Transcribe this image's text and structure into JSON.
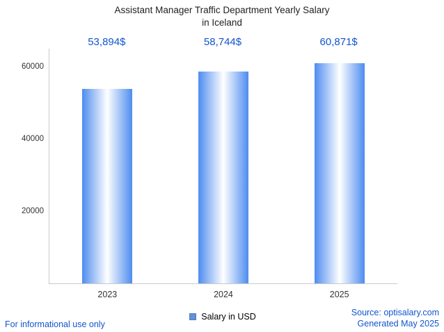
{
  "chart_data": {
    "type": "bar",
    "title": "Assistant Manager Traffic Department Yearly Salary in Iceland",
    "title_lines": [
      "Assistant Manager Traffic Department Yearly Salary",
      "in Iceland"
    ],
    "categories": [
      "2023",
      "2024",
      "2025"
    ],
    "values": [
      53894,
      58744,
      60871
    ],
    "value_labels": [
      "53,894$",
      "58,744$",
      "60,871$"
    ],
    "series": [
      {
        "name": "Salary in USD",
        "values": [
          53894,
          58744,
          60871
        ]
      }
    ],
    "xlabel": "",
    "ylabel": "",
    "ylim": [
      0,
      65000
    ],
    "yticks": [
      20000,
      40000,
      60000
    ],
    "grid": false,
    "legend_position": "bottom"
  },
  "legend": {
    "label": "Salary in USD",
    "swatch_color": "#6691d3"
  },
  "footer": {
    "disclaimer": "For informational use only",
    "source": "Source: optisalary.com",
    "generated": "Generated May 2025"
  },
  "colors": {
    "label_blue": "#1155cc",
    "bar_edge": "#4e8cf0",
    "bar_center": "#ffffff",
    "axis": "#c9c9c9",
    "title_text": "#1f1f1f"
  }
}
